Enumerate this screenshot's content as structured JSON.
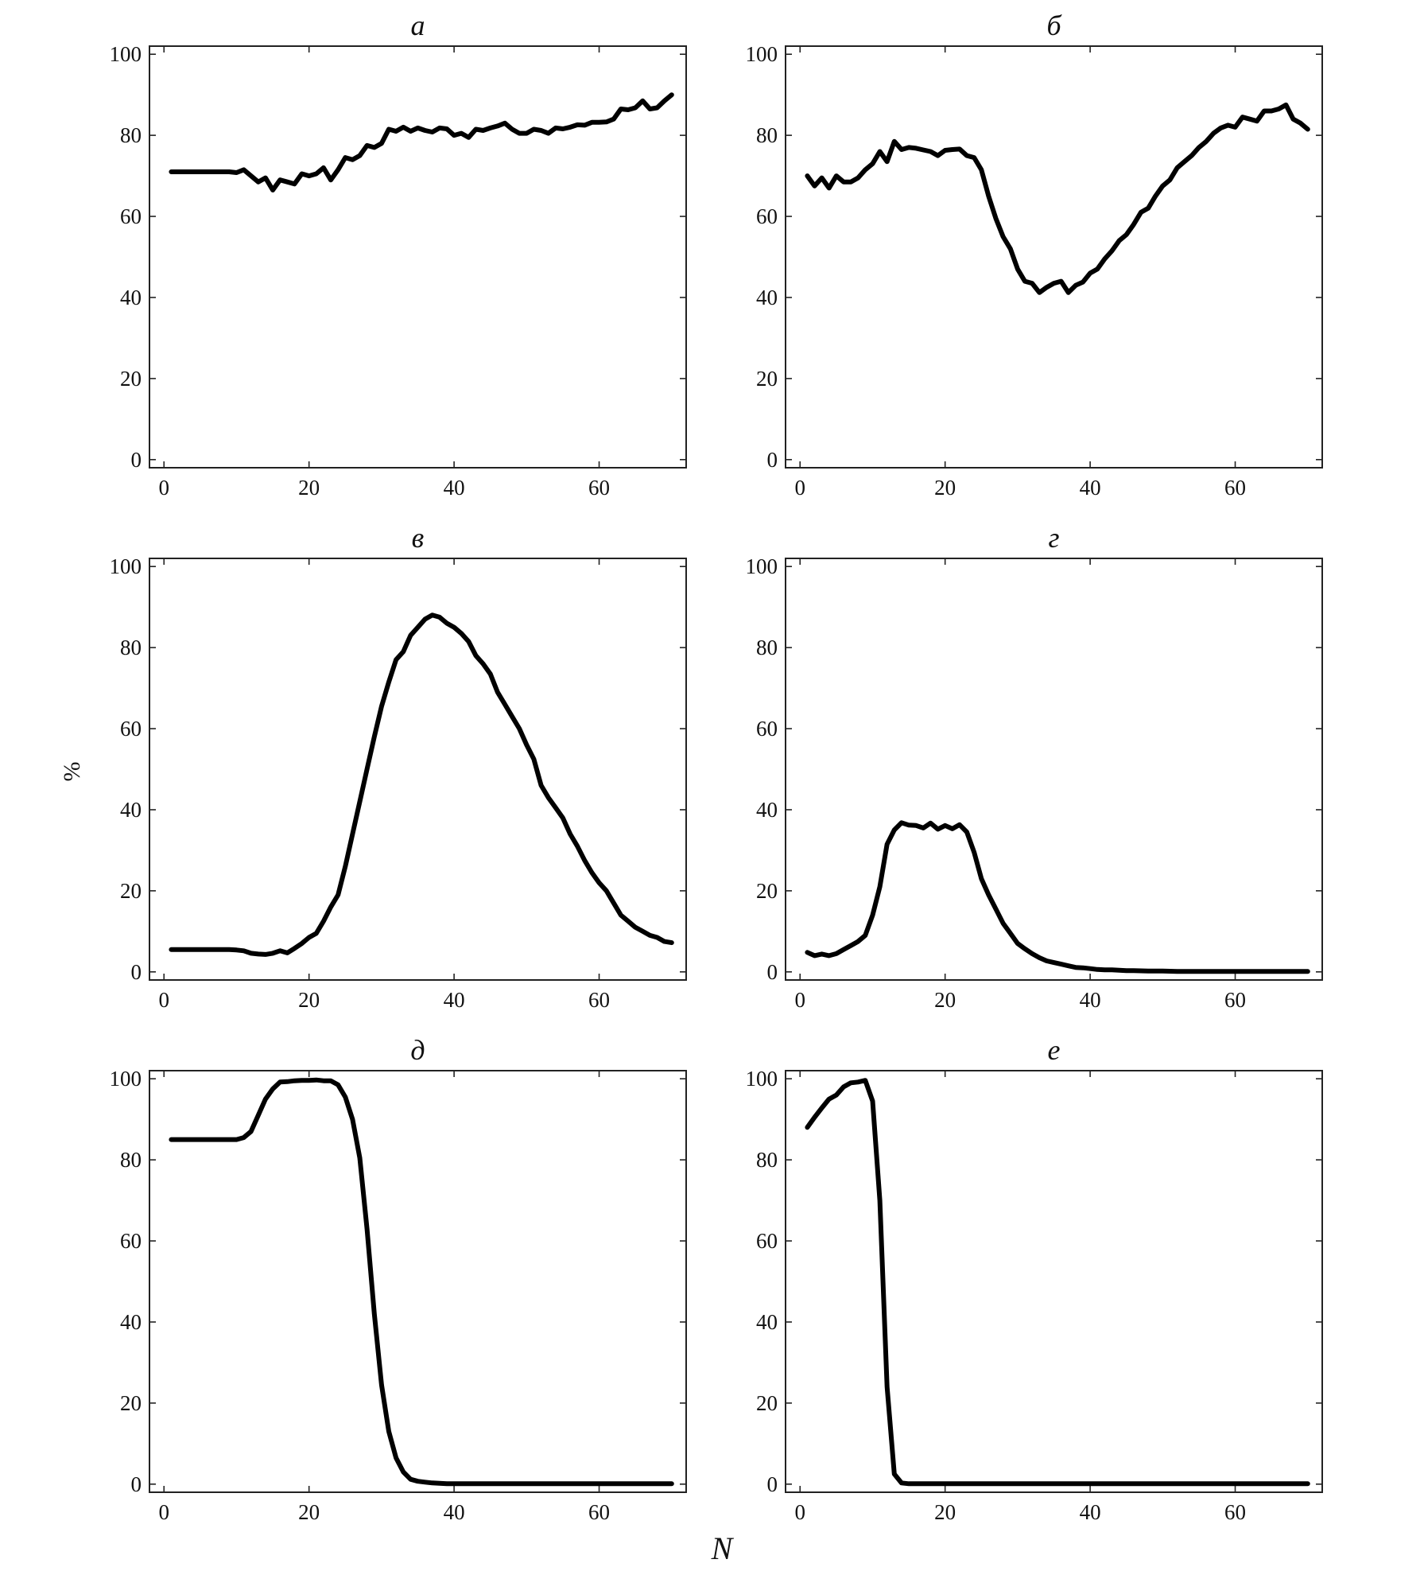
{
  "figure": {
    "ylabel": "%",
    "xlabel": "N"
  },
  "chart_data": [
    {
      "type": "line",
      "title": "а",
      "xlim": [
        -2,
        72
      ],
      "ylim": [
        -2,
        102
      ],
      "xticks": [
        0,
        20,
        40,
        60
      ],
      "yticks": [
        0,
        20,
        40,
        60,
        80,
        100
      ],
      "x": [
        1,
        2,
        3,
        4,
        5,
        6,
        7,
        8,
        9,
        10,
        11,
        12,
        13,
        14,
        15,
        16,
        17,
        18,
        19,
        20,
        21,
        22,
        23,
        24,
        25,
        26,
        27,
        28,
        29,
        30,
        31,
        32,
        33,
        34,
        35,
        36,
        37,
        38,
        39,
        40,
        41,
        42,
        43,
        44,
        45,
        46,
        47,
        48,
        49,
        50,
        51,
        52,
        53,
        54,
        55,
        56,
        57,
        58,
        59,
        60,
        61,
        62,
        63,
        64,
        65,
        66,
        67,
        68,
        69,
        70
      ],
      "series": [
        {
          "values": [
            71,
            71,
            71,
            71,
            71,
            71,
            71,
            71,
            71,
            70.8,
            71.5,
            70,
            68.5,
            69.5,
            66.5,
            69,
            68.5,
            68,
            70.5,
            70,
            70.5,
            72,
            69,
            71.5,
            74.5,
            74,
            75,
            77.5,
            77,
            78,
            81.5,
            81,
            82,
            81,
            81.8,
            81.2,
            80.8,
            81.8,
            81.6,
            80,
            80.5,
            79.5,
            81.5,
            81.2,
            81.8,
            82.3,
            83,
            81.5,
            80.5,
            80.5,
            81.5,
            81.2,
            80.5,
            81.8,
            81.6,
            82,
            82.6,
            82.5,
            83.2,
            83.2,
            83.3,
            84,
            86.5,
            86.3,
            86.8,
            88.5,
            86.5,
            86.8,
            88.5,
            90
          ]
        }
      ]
    },
    {
      "type": "line",
      "title": "б",
      "xlim": [
        -2,
        72
      ],
      "ylim": [
        -2,
        102
      ],
      "xticks": [
        0,
        20,
        40,
        60
      ],
      "yticks": [
        0,
        20,
        40,
        60,
        80,
        100
      ],
      "x": [
        1,
        2,
        3,
        4,
        5,
        6,
        7,
        8,
        9,
        10,
        11,
        12,
        13,
        14,
        15,
        16,
        17,
        18,
        19,
        20,
        21,
        22,
        23,
        24,
        25,
        26,
        27,
        28,
        29,
        30,
        31,
        32,
        33,
        34,
        35,
        36,
        37,
        38,
        39,
        40,
        41,
        42,
        43,
        44,
        45,
        46,
        47,
        48,
        49,
        50,
        51,
        52,
        53,
        54,
        55,
        56,
        57,
        58,
        59,
        60,
        61,
        62,
        63,
        64,
        65,
        66,
        67,
        68,
        69,
        70
      ],
      "series": [
        {
          "values": [
            70,
            67.5,
            69.5,
            67,
            70,
            68.5,
            68.5,
            69.5,
            71.5,
            73,
            76,
            73.5,
            78.5,
            76.5,
            77,
            76.8,
            76.4,
            76,
            75,
            76.3,
            76.5,
            76.6,
            75,
            74.5,
            71.5,
            65,
            59.5,
            55,
            52,
            47,
            44,
            43.5,
            41.2,
            42.5,
            43.5,
            44,
            41.2,
            43,
            43.8,
            46,
            47,
            49.5,
            51.5,
            54,
            55.5,
            58,
            61,
            62,
            65,
            67.5,
            69,
            72,
            73.5,
            75,
            77,
            78.5,
            80.5,
            81.8,
            82.5,
            82,
            84.5,
            84,
            83.5,
            86,
            86,
            86.5,
            87.5,
            84,
            83,
            81.5
          ]
        }
      ]
    },
    {
      "type": "line",
      "title": "в",
      "xlim": [
        -2,
        72
      ],
      "ylim": [
        -2,
        102
      ],
      "xticks": [
        0,
        20,
        40,
        60
      ],
      "yticks": [
        0,
        20,
        40,
        60,
        80,
        100
      ],
      "x": [
        1,
        2,
        3,
        4,
        5,
        6,
        7,
        8,
        9,
        10,
        11,
        12,
        13,
        14,
        15,
        16,
        17,
        18,
        19,
        20,
        21,
        22,
        23,
        24,
        25,
        26,
        27,
        28,
        29,
        30,
        31,
        32,
        33,
        34,
        35,
        36,
        37,
        38,
        39,
        40,
        41,
        42,
        43,
        44,
        45,
        46,
        47,
        48,
        49,
        50,
        51,
        52,
        53,
        54,
        55,
        56,
        57,
        58,
        59,
        60,
        61,
        62,
        63,
        64,
        65,
        66,
        67,
        68,
        69,
        70
      ],
      "series": [
        {
          "values": [
            5.5,
            5.5,
            5.5,
            5.5,
            5.5,
            5.5,
            5.5,
            5.5,
            5.5,
            5.4,
            5.2,
            4.6,
            4.4,
            4.3,
            4.6,
            5.2,
            4.7,
            5.8,
            7,
            8.5,
            9.5,
            12.5,
            16,
            19,
            26,
            34,
            42,
            50,
            58,
            65.5,
            71.5,
            77,
            79,
            83,
            85,
            87,
            88,
            87.5,
            86,
            85,
            83.5,
            81.5,
            78,
            76,
            73.5,
            69,
            66,
            63,
            60,
            56,
            52.5,
            46,
            43,
            40.5,
            38,
            34,
            31,
            27.5,
            24.5,
            22,
            20,
            17,
            14,
            12.5,
            11,
            10,
            9,
            8.5,
            7.5,
            7.2
          ]
        }
      ]
    },
    {
      "type": "line",
      "title": "г",
      "xlim": [
        -2,
        72
      ],
      "ylim": [
        -2,
        102
      ],
      "xticks": [
        0,
        20,
        40,
        60
      ],
      "yticks": [
        0,
        20,
        40,
        60,
        80,
        100
      ],
      "x": [
        1,
        2,
        3,
        4,
        5,
        6,
        7,
        8,
        9,
        10,
        11,
        12,
        13,
        14,
        15,
        16,
        17,
        18,
        19,
        20,
        21,
        22,
        23,
        24,
        25,
        26,
        27,
        28,
        29,
        30,
        31,
        32,
        33,
        34,
        35,
        36,
        37,
        38,
        39,
        40,
        41,
        42,
        43,
        44,
        45,
        46,
        47,
        48,
        49,
        50,
        51,
        52,
        53,
        54,
        55,
        56,
        57,
        58,
        59,
        60,
        61,
        62,
        63,
        64,
        65,
        66,
        67,
        68,
        69,
        70
      ],
      "series": [
        {
          "values": [
            4.8,
            4,
            4.4,
            4,
            4.5,
            5.5,
            6.5,
            7.5,
            9,
            14,
            21,
            31.5,
            35,
            36.8,
            36.2,
            36.1,
            35.5,
            36.7,
            35.2,
            36.1,
            35.3,
            36.3,
            34.5,
            29.5,
            23,
            19,
            15.5,
            12,
            9.5,
            7,
            5.7,
            4.5,
            3.5,
            2.7,
            2.3,
            1.9,
            1.5,
            1.1,
            1,
            0.8,
            0.6,
            0.5,
            0.5,
            0.4,
            0.3,
            0.3,
            0.25,
            0.2,
            0.2,
            0.2,
            0.15,
            0.1,
            0.1,
            0.1,
            0.1,
            0.1,
            0.1,
            0.1,
            0.1,
            0.1,
            0.1,
            0.1,
            0.1,
            0.1,
            0.1,
            0.1,
            0.1,
            0.1,
            0.1,
            0.1
          ]
        }
      ]
    },
    {
      "type": "line",
      "title": "д",
      "xlim": [
        -2,
        72
      ],
      "ylim": [
        -2,
        102
      ],
      "xticks": [
        0,
        20,
        40,
        60
      ],
      "yticks": [
        0,
        20,
        40,
        60,
        80,
        100
      ],
      "x": [
        1,
        2,
        3,
        4,
        5,
        6,
        7,
        8,
        9,
        10,
        11,
        12,
        13,
        14,
        15,
        16,
        17,
        18,
        19,
        20,
        21,
        22,
        23,
        24,
        25,
        26,
        27,
        28,
        29,
        30,
        31,
        32,
        33,
        34,
        35,
        36,
        37,
        38,
        39,
        40,
        41,
        42,
        43,
        44,
        45,
        46,
        47,
        48,
        49,
        50,
        51,
        52,
        53,
        54,
        55,
        56,
        57,
        58,
        59,
        60,
        61,
        62,
        63,
        64,
        65,
        66,
        67,
        68,
        69,
        70
      ],
      "series": [
        {
          "values": [
            85,
            85,
            85,
            85,
            85,
            85,
            85,
            85,
            85,
            85,
            85.5,
            87,
            91,
            95,
            97.5,
            99.2,
            99.3,
            99.5,
            99.6,
            99.6,
            99.7,
            99.5,
            99.5,
            98.5,
            95.5,
            90,
            80.5,
            63,
            42,
            24.5,
            13,
            6.5,
            3,
            1.2,
            0.7,
            0.5,
            0.3,
            0.2,
            0.1,
            0.1,
            0.1,
            0.1,
            0.1,
            0.1,
            0.1,
            0.1,
            0.1,
            0.1,
            0.1,
            0.1,
            0.1,
            0.1,
            0.1,
            0.1,
            0.1,
            0.1,
            0.1,
            0.1,
            0.1,
            0.1,
            0.1,
            0.1,
            0.1,
            0.1,
            0.1,
            0.1,
            0.1,
            0.1,
            0.1,
            0.1
          ]
        }
      ]
    },
    {
      "type": "line",
      "title": "е",
      "xlim": [
        -2,
        72
      ],
      "ylim": [
        -2,
        102
      ],
      "xticks": [
        0,
        20,
        40,
        60
      ],
      "yticks": [
        0,
        20,
        40,
        60,
        80,
        100
      ],
      "x": [
        1,
        2,
        3,
        4,
        5,
        6,
        7,
        8,
        9,
        10,
        11,
        12,
        13,
        14,
        15,
        16,
        17,
        18,
        19,
        20,
        21,
        22,
        23,
        24,
        25,
        26,
        27,
        28,
        29,
        30,
        31,
        32,
        33,
        34,
        35,
        36,
        37,
        38,
        39,
        40,
        41,
        42,
        43,
        44,
        45,
        46,
        47,
        48,
        49,
        50,
        51,
        52,
        53,
        54,
        55,
        56,
        57,
        58,
        59,
        60,
        61,
        62,
        63,
        64,
        65,
        66,
        67,
        68,
        69,
        70
      ],
      "series": [
        {
          "values": [
            88,
            90.5,
            92.8,
            95,
            96,
            98,
            99,
            99.2,
            99.6,
            94.5,
            70,
            24,
            2.5,
            0.3,
            0.1,
            0.1,
            0.1,
            0.1,
            0.1,
            0.1,
            0.1,
            0.1,
            0.1,
            0.1,
            0.1,
            0.1,
            0.1,
            0.1,
            0.1,
            0.1,
            0.1,
            0.1,
            0.1,
            0.1,
            0.1,
            0.1,
            0.1,
            0.1,
            0.1,
            0.1,
            0.1,
            0.1,
            0.1,
            0.1,
            0.1,
            0.1,
            0.1,
            0.1,
            0.1,
            0.1,
            0.1,
            0.1,
            0.1,
            0.1,
            0.1,
            0.1,
            0.1,
            0.1,
            0.1,
            0.1,
            0.1,
            0.1,
            0.1,
            0.1,
            0.1,
            0.1,
            0.1,
            0.1,
            0.1,
            0.1
          ]
        }
      ]
    }
  ]
}
